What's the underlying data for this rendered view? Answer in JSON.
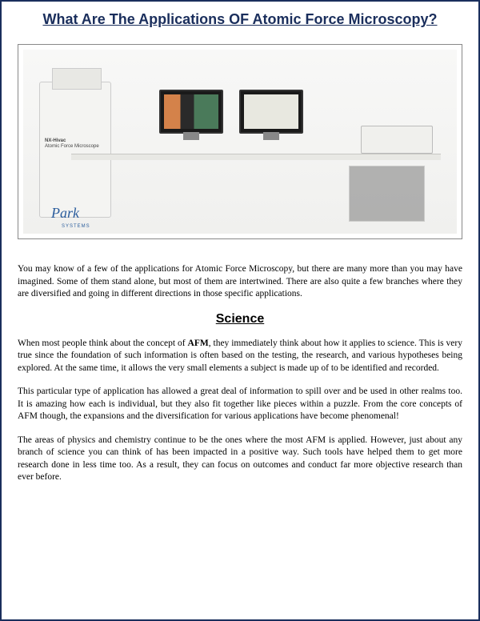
{
  "title": "What Are The Applications OF Atomic Force Microscopy?",
  "image": {
    "equipment_label_line1": "NX-Hivac",
    "equipment_label_line2": "Atomic Force Microscope",
    "brand_logo": "Park",
    "brand_sub": "SYSTEMS",
    "colors": {
      "background": "#f8f8f7",
      "bench": "#e8e8e4",
      "machine": "#f4f4f2",
      "monitor_frame": "#1a1a1a",
      "monitor1_content_left": "#d4824a",
      "monitor1_content_right": "#4a7a5a",
      "monitor2_content": "#e8e8e0",
      "brand_color": "#2a5c9c"
    }
  },
  "paragraphs": {
    "intro": "You may know of a few of the applications for Atomic Force Microscopy, but there are many more than you may have imagined. Some of them stand alone, but most of them are intertwined. There are also quite a few branches where they are diversified and going in different directions in those specific applications.",
    "section1_heading": "Science",
    "science_p1_before": "When most people think about the concept of ",
    "science_p1_bold": "AFM",
    "science_p1_after": ", they immediately think about how it applies to science. This is very true since the foundation of such information is often based on the testing, the research, and various hypotheses being explored. At the same time, it allows the very small elements a subject is made up of to be identified and recorded.",
    "science_p2": "This particular type of application has allowed a great deal of information to spill over and be used in other realms too. It is amazing how each is individual, but they also fit together like pieces within a puzzle. From the core concepts of AFM though, the expansions and the diversification for various applications have become phenomenal!",
    "science_p3": "The areas of physics and chemistry continue to be the ones where the most AFM is applied. However, just about any branch of science you can think of has been impacted in a positive way. Such tools have helped them to get more research done in less time too. As a result, they can focus on outcomes and conduct far more objective research than ever before."
  },
  "styling": {
    "page_border_color": "#1a2e5c",
    "title_color": "#1a2e5c",
    "title_fontsize": 18,
    "body_fontsize": 11.5,
    "heading_fontsize": 16,
    "background": "#ffffff",
    "text_color": "#000000",
    "text_align": "justify"
  }
}
